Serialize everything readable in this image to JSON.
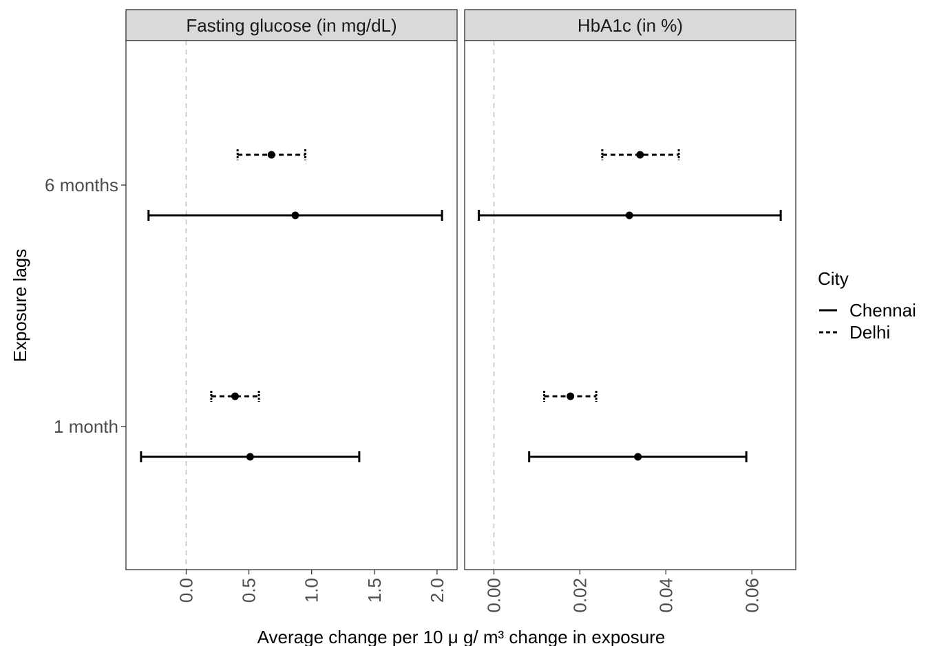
{
  "colors": {
    "panel_border": "#333333",
    "strip_fill": "#d9d9d9",
    "zero_line": "#bfbfbf",
    "tick_text": "#4d4d4d",
    "series": "#000000"
  },
  "chart_data": {
    "type": "forest",
    "layout": "facet_wrap",
    "xlabel": "Average change per 10 μ g/ m³ change in exposure",
    "ylabel": "Exposure lags",
    "categories": [
      "6 months",
      "1 month"
    ],
    "grid": false,
    "reference_line": {
      "x": 0,
      "style": "dashed"
    },
    "legend": {
      "title": "City",
      "position": "right",
      "entries": [
        {
          "name": "Chennai",
          "linetype": "solid"
        },
        {
          "name": "Delhi",
          "linetype": "dashed"
        }
      ]
    },
    "facets": [
      {
        "title": "Fasting glucose (in mg/dL)",
        "xlim": [
          -0.48,
          2.16
        ],
        "xticks": [
          0.0,
          0.5,
          1.0,
          1.5,
          2.0
        ],
        "xtick_labels": [
          "0.0",
          "0.5",
          "1.0",
          "1.5",
          "2.0"
        ],
        "points": [
          {
            "lag": "6 months",
            "city": "Delhi",
            "estimate": 0.68,
            "lower": 0.41,
            "upper": 0.95
          },
          {
            "lag": "6 months",
            "city": "Chennai",
            "estimate": 0.87,
            "lower": -0.3,
            "upper": 2.04
          },
          {
            "lag": "1 month",
            "city": "Delhi",
            "estimate": 0.39,
            "lower": 0.2,
            "upper": 0.58
          },
          {
            "lag": "1 month",
            "city": "Chennai",
            "estimate": 0.51,
            "lower": -0.36,
            "upper": 1.38
          }
        ]
      },
      {
        "title": "HbA1c (in %)",
        "xlim": [
          -0.0068,
          0.0702
        ],
        "xticks": [
          0.0,
          0.02,
          0.04,
          0.06
        ],
        "xtick_labels": [
          "0.00",
          "0.02",
          "0.04",
          "0.06"
        ],
        "points": [
          {
            "lag": "6 months",
            "city": "Delhi",
            "estimate": 0.034,
            "lower": 0.0252,
            "upper": 0.043
          },
          {
            "lag": "6 months",
            "city": "Chennai",
            "estimate": 0.0315,
            "lower": -0.0035,
            "upper": 0.0667
          },
          {
            "lag": "1 month",
            "city": "Delhi",
            "estimate": 0.0178,
            "lower": 0.0117,
            "upper": 0.0238
          },
          {
            "lag": "1 month",
            "city": "Chennai",
            "estimate": 0.0335,
            "lower": 0.0082,
            "upper": 0.0587
          }
        ]
      }
    ]
  }
}
